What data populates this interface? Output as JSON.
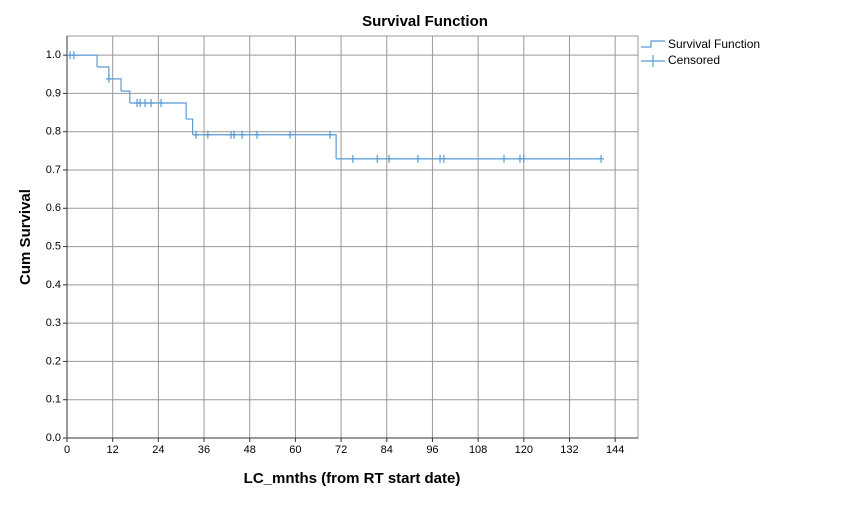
{
  "chart_data": {
    "type": "step",
    "title": "Survival Function",
    "x_label": "LC_mnths (from RT start date)",
    "y_label": "Cum Survival",
    "series": [
      {
        "name": "Survival Function",
        "color": "#5b9bd5",
        "x": [
          0,
          7.9,
          11,
          14.2,
          16.5,
          31.3,
          33,
          70.7,
          140.3
        ],
        "values": [
          1.0,
          0.969,
          0.938,
          0.906,
          0.875,
          0.833,
          0.792,
          0.729,
          0.729
        ]
      },
      {
        "name": "Censored",
        "color": "#5b9bd5",
        "x": [
          0.8,
          1.8,
          11,
          18.4,
          19.2,
          20.5,
          22.1,
          24.7,
          33.9,
          37,
          43.1,
          43.9,
          46,
          49.9,
          58.6,
          69.1,
          75.1,
          81.5,
          84.6,
          92.2,
          98,
          99,
          114.8,
          119,
          120,
          140.3
        ],
        "values": [
          1.0,
          1.0,
          0.938,
          0.875,
          0.875,
          0.875,
          0.875,
          0.875,
          0.792,
          0.792,
          0.792,
          0.792,
          0.792,
          0.792,
          0.792,
          0.792,
          0.729,
          0.729,
          0.729,
          0.729,
          0.729,
          0.729,
          0.729,
          0.729,
          0.729,
          0.729
        ]
      }
    ],
    "xlim": [
      0,
      150
    ],
    "xticks": [
      0,
      12,
      24,
      36,
      48,
      60,
      72,
      84,
      96,
      108,
      120,
      132,
      144
    ],
    "ylim": [
      0,
      1.05
    ],
    "yticks": [
      {
        "value": 0,
        "label": "0.0"
      },
      0.1,
      0.2,
      0.3,
      0.4,
      0.5,
      0.6,
      0.7,
      0.8,
      0.9,
      {
        "value": 1,
        "label": "1.0"
      }
    ],
    "grid": true,
    "legend": "right"
  }
}
